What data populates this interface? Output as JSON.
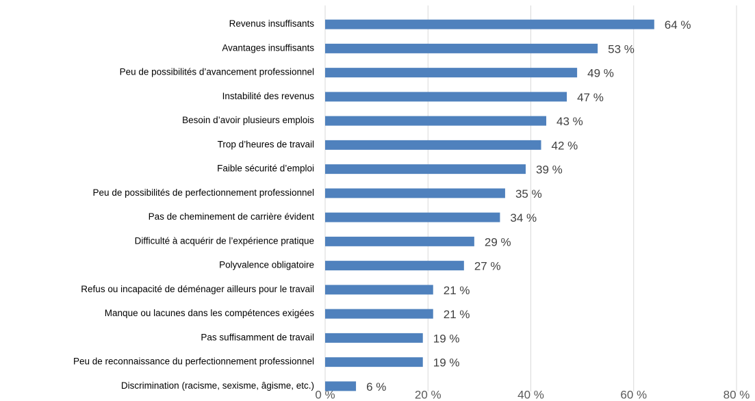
{
  "chart_data": {
    "type": "bar",
    "orientation": "horizontal",
    "categories": [
      "Revenus insuffisants",
      "Avantages insuffisants",
      "Peu de possibilités d’avancement professionnel",
      "Instabilité des revenus",
      "Besoin d’avoir plusieurs emplois",
      "Trop d’heures de travail",
      "Faible sécurité d’emploi",
      "Peu de possibilités de perfectionnement professionnel",
      "Pas de cheminement de carrière évident",
      "Difficulté à acquérir de l’expérience pratique",
      "Polyvalence obligatoire",
      "Refus ou incapacité de déménager ailleurs pour le travail",
      "Manque ou lacunes dans les compétences exigées",
      "Pas suffisamment de travail",
      "Peu de reconnaissance du perfectionnement professionnel",
      "Discrimination (racisme, sexisme, âgisme, etc.)"
    ],
    "values": [
      64,
      53,
      49,
      47,
      43,
      42,
      39,
      35,
      34,
      29,
      27,
      21,
      21,
      19,
      19,
      6
    ],
    "value_labels": [
      "64 %",
      "53 %",
      "49 %",
      "47 %",
      "43 %",
      "42 %",
      "39 %",
      "35 %",
      "34 %",
      "29 %",
      "27 %",
      "21 %",
      "21 %",
      "19 %",
      "19 %",
      "6 %"
    ],
    "color": "#4f81bd",
    "xlim": [
      0,
      80
    ],
    "xticks": [
      {
        "value": 0,
        "label": "0 %"
      },
      {
        "value": 20,
        "label": "20 %"
      },
      {
        "value": 40,
        "label": "40 %"
      },
      {
        "value": 60,
        "label": "60 %"
      },
      {
        "value": 80,
        "label": "80 %"
      }
    ],
    "grid": true
  }
}
